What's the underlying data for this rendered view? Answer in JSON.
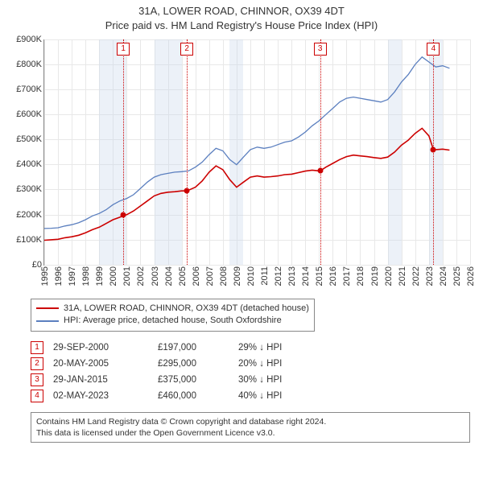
{
  "title_line1": "31A, LOWER ROAD, CHINNOR, OX39 4DT",
  "title_line2": "Price paid vs. HM Land Registry's House Price Index (HPI)",
  "chart": {
    "type": "line",
    "x_start_year": 1995,
    "x_end_year": 2026,
    "x_tick_step": 1,
    "ylim": [
      0,
      900000
    ],
    "ytick_step": 100000,
    "y_tick_labels": [
      "£0",
      "£100K",
      "£200K",
      "£300K",
      "£400K",
      "£500K",
      "£600K",
      "£700K",
      "£800K",
      "£900K"
    ],
    "background_color": "#ffffff",
    "grid_color": "#e8e8e8",
    "axis_color": "#888888",
    "shaded_ranges": [
      [
        1999.0,
        2001.0
      ],
      [
        2003.0,
        2005.0
      ],
      [
        2008.5,
        2009.5
      ],
      [
        2020.0,
        2021.0
      ],
      [
        2023.0,
        2024.0
      ]
    ],
    "shade_color": "rgba(200,215,235,0.35)",
    "series": {
      "hpi": {
        "label": "HPI: Average price, detached house, South Oxfordshire",
        "color": "#5b7fbf",
        "width": 1.3,
        "data": [
          [
            1995.0,
            145000
          ],
          [
            1995.5,
            146000
          ],
          [
            1996.0,
            148000
          ],
          [
            1996.5,
            155000
          ],
          [
            1997.0,
            160000
          ],
          [
            1997.5,
            168000
          ],
          [
            1998.0,
            180000
          ],
          [
            1998.5,
            195000
          ],
          [
            1999.0,
            205000
          ],
          [
            1999.5,
            220000
          ],
          [
            2000.0,
            240000
          ],
          [
            2000.5,
            255000
          ],
          [
            2001.0,
            265000
          ],
          [
            2001.5,
            280000
          ],
          [
            2002.0,
            305000
          ],
          [
            2002.5,
            330000
          ],
          [
            2003.0,
            350000
          ],
          [
            2003.5,
            360000
          ],
          [
            2004.0,
            365000
          ],
          [
            2004.5,
            370000
          ],
          [
            2005.0,
            372000
          ],
          [
            2005.5,
            375000
          ],
          [
            2006.0,
            390000
          ],
          [
            2006.5,
            410000
          ],
          [
            2007.0,
            440000
          ],
          [
            2007.5,
            465000
          ],
          [
            2008.0,
            455000
          ],
          [
            2008.5,
            420000
          ],
          [
            2009.0,
            400000
          ],
          [
            2009.5,
            430000
          ],
          [
            2010.0,
            460000
          ],
          [
            2010.5,
            470000
          ],
          [
            2011.0,
            465000
          ],
          [
            2011.5,
            470000
          ],
          [
            2012.0,
            480000
          ],
          [
            2012.5,
            490000
          ],
          [
            2013.0,
            495000
          ],
          [
            2013.5,
            510000
          ],
          [
            2014.0,
            530000
          ],
          [
            2014.5,
            555000
          ],
          [
            2015.0,
            575000
          ],
          [
            2015.5,
            600000
          ],
          [
            2016.0,
            625000
          ],
          [
            2016.5,
            650000
          ],
          [
            2017.0,
            665000
          ],
          [
            2017.5,
            670000
          ],
          [
            2018.0,
            665000
          ],
          [
            2018.5,
            660000
          ],
          [
            2019.0,
            655000
          ],
          [
            2019.5,
            650000
          ],
          [
            2020.0,
            660000
          ],
          [
            2020.5,
            690000
          ],
          [
            2021.0,
            730000
          ],
          [
            2021.5,
            760000
          ],
          [
            2022.0,
            800000
          ],
          [
            2022.5,
            830000
          ],
          [
            2023.0,
            810000
          ],
          [
            2023.5,
            790000
          ],
          [
            2024.0,
            795000
          ],
          [
            2024.5,
            785000
          ]
        ]
      },
      "property": {
        "label": "31A, LOWER ROAD, CHINNOR, OX39 4DT (detached house)",
        "color": "#cc0000",
        "width": 1.6,
        "data": [
          [
            1995.0,
            98000
          ],
          [
            1995.5,
            100000
          ],
          [
            1996.0,
            102000
          ],
          [
            1996.5,
            108000
          ],
          [
            1997.0,
            112000
          ],
          [
            1997.5,
            118000
          ],
          [
            1998.0,
            128000
          ],
          [
            1998.5,
            140000
          ],
          [
            1999.0,
            150000
          ],
          [
            1999.5,
            165000
          ],
          [
            2000.0,
            180000
          ],
          [
            2000.5,
            190000
          ],
          [
            2000.75,
            197000
          ],
          [
            2001.0,
            200000
          ],
          [
            2001.5,
            215000
          ],
          [
            2002.0,
            235000
          ],
          [
            2002.5,
            255000
          ],
          [
            2003.0,
            275000
          ],
          [
            2003.5,
            285000
          ],
          [
            2004.0,
            290000
          ],
          [
            2004.5,
            292000
          ],
          [
            2005.0,
            295000
          ],
          [
            2005.38,
            295000
          ],
          [
            2005.5,
            298000
          ],
          [
            2006.0,
            310000
          ],
          [
            2006.5,
            335000
          ],
          [
            2007.0,
            370000
          ],
          [
            2007.5,
            395000
          ],
          [
            2008.0,
            380000
          ],
          [
            2008.5,
            340000
          ],
          [
            2009.0,
            310000
          ],
          [
            2009.5,
            330000
          ],
          [
            2010.0,
            350000
          ],
          [
            2010.5,
            355000
          ],
          [
            2011.0,
            350000
          ],
          [
            2011.5,
            352000
          ],
          [
            2012.0,
            355000
          ],
          [
            2012.5,
            360000
          ],
          [
            2013.0,
            362000
          ],
          [
            2013.5,
            368000
          ],
          [
            2014.0,
            374000
          ],
          [
            2014.5,
            378000
          ],
          [
            2015.0,
            375000
          ],
          [
            2015.08,
            375000
          ],
          [
            2015.5,
            390000
          ],
          [
            2016.0,
            405000
          ],
          [
            2016.5,
            420000
          ],
          [
            2017.0,
            432000
          ],
          [
            2017.5,
            438000
          ],
          [
            2018.0,
            435000
          ],
          [
            2018.5,
            432000
          ],
          [
            2019.0,
            428000
          ],
          [
            2019.5,
            425000
          ],
          [
            2020.0,
            430000
          ],
          [
            2020.5,
            450000
          ],
          [
            2021.0,
            478000
          ],
          [
            2021.5,
            498000
          ],
          [
            2022.0,
            525000
          ],
          [
            2022.5,
            545000
          ],
          [
            2023.0,
            515000
          ],
          [
            2023.33,
            460000
          ],
          [
            2023.5,
            460000
          ],
          [
            2024.0,
            462000
          ],
          [
            2024.5,
            458000
          ]
        ]
      }
    },
    "markers": [
      {
        "n": 1,
        "x": 2000.75,
        "y": 197000
      },
      {
        "n": 2,
        "x": 2005.38,
        "y": 295000
      },
      {
        "n": 3,
        "x": 2015.08,
        "y": 375000
      },
      {
        "n": 4,
        "x": 2023.33,
        "y": 460000
      }
    ],
    "marker_color": "#cc0000"
  },
  "legend": [
    {
      "color": "#cc0000",
      "text": "31A, LOWER ROAD, CHINNOR, OX39 4DT (detached house)"
    },
    {
      "color": "#5b7fbf",
      "text": "HPI: Average price, detached house, South Oxfordshire"
    }
  ],
  "sales": [
    {
      "n": "1",
      "date": "29-SEP-2000",
      "price": "£197,000",
      "delta": "29% ↓ HPI"
    },
    {
      "n": "2",
      "date": "20-MAY-2005",
      "price": "£295,000",
      "delta": "20% ↓ HPI"
    },
    {
      "n": "3",
      "date": "29-JAN-2015",
      "price": "£375,000",
      "delta": "30% ↓ HPI"
    },
    {
      "n": "4",
      "date": "02-MAY-2023",
      "price": "£460,000",
      "delta": "40% ↓ HPI"
    }
  ],
  "footer_line1": "Contains HM Land Registry data © Crown copyright and database right 2024.",
  "footer_line2": "This data is licensed under the Open Government Licence v3.0."
}
